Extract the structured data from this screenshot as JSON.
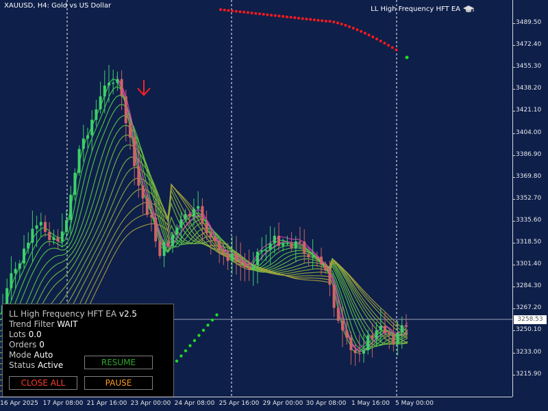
{
  "chart": {
    "symbol_title": "XAUUSD, H4:  Gold vs US Dollar",
    "ea_label": "LL High Frequency HFT EA",
    "ea_icon": "graduation-cap-icon",
    "current_price": "3258.53",
    "price_ticks": [
      "3489.50",
      "3472.40",
      "3455.30",
      "3438.20",
      "3421.10",
      "3404.00",
      "3386.90",
      "3369.80",
      "3352.70",
      "3335.60",
      "3318.50",
      "3301.40",
      "3284.30",
      "3267.20",
      "3250.10",
      "3233.00",
      "3215.90"
    ],
    "time_ticks": [
      "16 Apr 2025",
      "17 Apr 08:00",
      "21 Apr 16:00",
      "23 Apr 00:00",
      "24 Apr 08:00",
      "25 Apr 16:00",
      "29 Apr 00:00",
      "30 Apr 08:00",
      "1 May 16:00",
      "5 May 00:00"
    ],
    "colors": {
      "background": "#0e1f4a",
      "bull_candle": "#3ecf6a",
      "bear_candle": "#d06464",
      "signal_dots_red": "#ff1a1a",
      "signal_dots_green": "#22dd22",
      "sell_arrow": "#ff2020"
    }
  },
  "panel": {
    "title": "LL High Frequency HFT EA",
    "version": "v2.5",
    "trend_label": "Trend Filter",
    "trend_value": "WAIT",
    "lots_label": "Lots",
    "lots_value": "0.0",
    "orders_label": "Orders",
    "orders_value": "0",
    "mode_label": "Mode",
    "mode_value": "Auto",
    "status_label": "Status",
    "status_value": "Active",
    "resume_label": "RESUME",
    "close_all_label": "CLOSE ALL",
    "pause_label": "PAUSE"
  }
}
